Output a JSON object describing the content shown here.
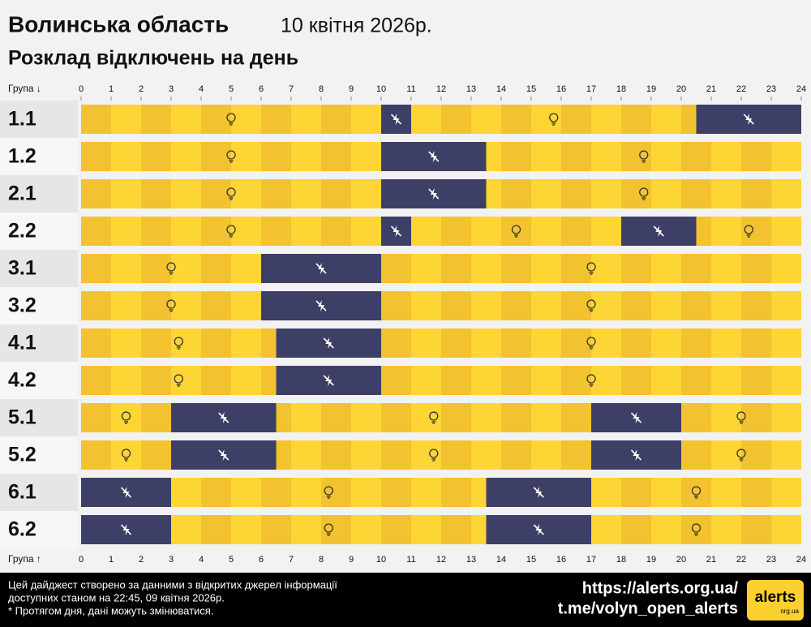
{
  "chart_data": {
    "type": "timeline",
    "title": "Волинська область",
    "date": "10 квітня 2026р.",
    "subtitle": "Розклад відключень на день",
    "top_axis_label": "Група ↓",
    "bottom_axis_label": "Група ↑",
    "xlim": [
      0,
      24
    ],
    "xticks": [
      0,
      1,
      2,
      3,
      4,
      5,
      6,
      7,
      8,
      9,
      10,
      11,
      12,
      13,
      14,
      15,
      16,
      17,
      18,
      19,
      20,
      21,
      22,
      23,
      24
    ],
    "on_color": "#fcd12f",
    "off_color": "#3d3f66",
    "groups": [
      {
        "name": "1.1",
        "outages": [
          [
            10,
            11
          ],
          [
            20.5,
            24
          ]
        ]
      },
      {
        "name": "1.2",
        "outages": [
          [
            10,
            13.5
          ]
        ]
      },
      {
        "name": "2.1",
        "outages": [
          [
            10,
            13.5
          ]
        ]
      },
      {
        "name": "2.2",
        "outages": [
          [
            10,
            11
          ],
          [
            18,
            20.5
          ]
        ]
      },
      {
        "name": "3.1",
        "outages": [
          [
            6,
            10
          ]
        ]
      },
      {
        "name": "3.2",
        "outages": [
          [
            6,
            10
          ]
        ]
      },
      {
        "name": "4.1",
        "outages": [
          [
            6.5,
            10
          ]
        ]
      },
      {
        "name": "4.2",
        "outages": [
          [
            6.5,
            10
          ]
        ]
      },
      {
        "name": "5.1",
        "outages": [
          [
            3,
            6.5
          ],
          [
            17,
            20
          ]
        ]
      },
      {
        "name": "5.2",
        "outages": [
          [
            3,
            6.5
          ],
          [
            17,
            20
          ]
        ]
      },
      {
        "name": "6.1",
        "outages": [
          [
            0,
            3
          ],
          [
            13.5,
            17
          ]
        ]
      },
      {
        "name": "6.2",
        "outages": [
          [
            0,
            3
          ],
          [
            13.5,
            17
          ]
        ]
      }
    ]
  },
  "footer": {
    "lines": [
      "Цей дайджест створено за данними з відкритих джерел інформації",
      "доступних станом на 22:45, 09 квітня 2026р.",
      "* Протягом дня, дані можуть змінюватися."
    ],
    "url": "https://alerts.org.ua/",
    "telegram": "t.me/volyn_open_alerts",
    "logo": "alerts",
    "logo_sub": "org.ua"
  }
}
